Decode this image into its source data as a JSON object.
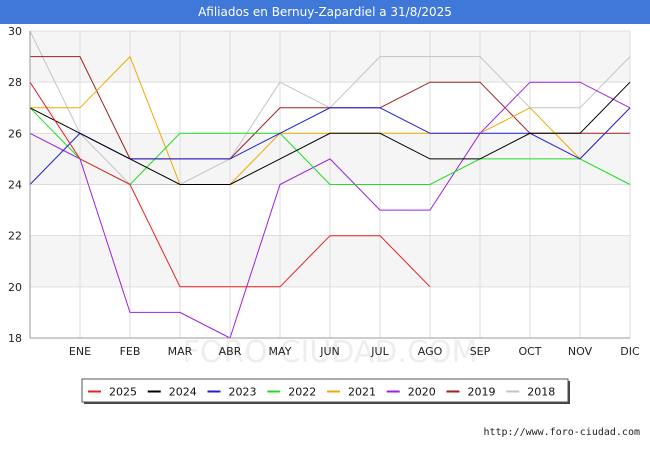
{
  "header": {
    "title": "Afiliados en Bernuy-Zapardiel a 31/8/2025"
  },
  "footer": {
    "credit": "http://www.foro-ciudad.com"
  },
  "watermark": "FORO-CIUDAD.COM",
  "chart_data": {
    "type": "line",
    "title": "Afiliados en Bernuy-Zapardiel a 31/8/2025",
    "xlabel": "",
    "ylabel": "",
    "ylim": [
      18,
      30
    ],
    "yticks": [
      18,
      20,
      22,
      24,
      26,
      28,
      30
    ],
    "categories": [
      "DIC",
      "ENE",
      "FEB",
      "MAR",
      "ABR",
      "MAY",
      "JUN",
      "JUL",
      "AGO",
      "SEP",
      "OCT",
      "NOV",
      "DIC"
    ],
    "x_tick_labels": [
      "ENE",
      "FEB",
      "MAR",
      "ABR",
      "MAY",
      "JUN",
      "JUL",
      "AGO",
      "SEP",
      "OCT",
      "NOV",
      "DIC"
    ],
    "grid": true,
    "legend_position": "bottom",
    "series": [
      {
        "name": "2025",
        "color": "#e82020",
        "values": [
          28,
          25,
          24,
          20,
          20,
          20,
          22,
          22,
          20,
          null,
          null,
          null,
          null
        ]
      },
      {
        "name": "2024",
        "color": "#000000",
        "values": [
          27,
          26,
          25,
          24,
          24,
          25,
          26,
          26,
          25,
          25,
          26,
          26,
          28
        ]
      },
      {
        "name": "2023",
        "color": "#1f1fdd",
        "values": [
          24,
          26,
          25,
          25,
          25,
          26,
          27,
          27,
          26,
          26,
          26,
          25,
          27
        ]
      },
      {
        "name": "2022",
        "color": "#22dd22",
        "values": [
          27,
          25,
          24,
          26,
          26,
          26,
          24,
          24,
          24,
          25,
          25,
          25,
          24
        ]
      },
      {
        "name": "2021",
        "color": "#f2a900",
        "values": [
          27,
          27,
          29,
          24,
          24,
          26,
          26,
          26,
          26,
          26,
          27,
          25,
          27
        ]
      },
      {
        "name": "2020",
        "color": "#a020e0",
        "values": [
          26,
          25,
          19,
          19,
          18,
          24,
          25,
          23,
          23,
          26,
          28,
          28,
          27
        ]
      },
      {
        "name": "2019",
        "color": "#a02020",
        "values": [
          29,
          29,
          25,
          25,
          25,
          27,
          27,
          27,
          28,
          28,
          26,
          26,
          26
        ]
      },
      {
        "name": "2018",
        "color": "#c4c4c4",
        "values": [
          30,
          26,
          24,
          24,
          25,
          28,
          27,
          29,
          29,
          29,
          27,
          27,
          29
        ]
      }
    ]
  }
}
